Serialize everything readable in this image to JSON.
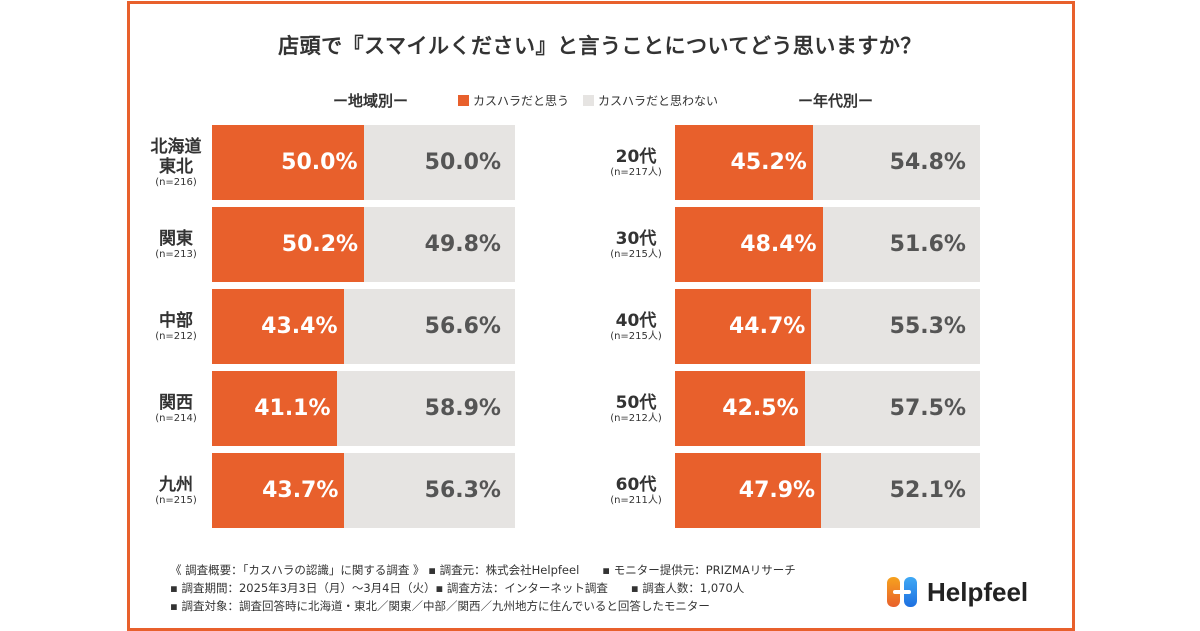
{
  "title": "店頭で『スマイルください』と言うことについてどう思いますか？",
  "colors": {
    "yes": "#e8602c",
    "no": "#e6e4e2",
    "frame": "#e8602c"
  },
  "legend": {
    "yes_label": "カスハラだと思う",
    "no_label": "カスハラだと思わない"
  },
  "chart_data": [
    {
      "type": "bar",
      "stacked": true,
      "orientation": "horizontal",
      "title": "ー地域別ー",
      "categories": [
        "北海道\n東北",
        "関東",
        "中部",
        "関西",
        "九州"
      ],
      "category_lines": [
        [
          "北海道",
          "東北"
        ],
        [
          "関東"
        ],
        [
          "中部"
        ],
        [
          "関西"
        ],
        [
          "九州"
        ]
      ],
      "sample_sizes": [
        "(n=216)",
        "(n=213)",
        "(n=212)",
        "(n=214)",
        "(n=215)"
      ],
      "series": [
        {
          "name": "カスハラだと思う",
          "values": [
            50.0,
            50.2,
            43.4,
            41.1,
            43.7
          ]
        },
        {
          "name": "カスハラだと思わない",
          "values": [
            50.0,
            49.8,
            56.6,
            58.9,
            56.3
          ]
        }
      ],
      "xlim": [
        0,
        100
      ]
    },
    {
      "type": "bar",
      "stacked": true,
      "orientation": "horizontal",
      "title": "ー年代別ー",
      "categories": [
        "20代",
        "30代",
        "40代",
        "50代",
        "60代"
      ],
      "category_lines": [
        [
          "20代"
        ],
        [
          "30代"
        ],
        [
          "40代"
        ],
        [
          "50代"
        ],
        [
          "60代"
        ]
      ],
      "sample_sizes": [
        "(n=217人)",
        "(n=215人)",
        "(n=215人)",
        "(n=212人)",
        "(n=211人)"
      ],
      "series": [
        {
          "name": "カスハラだと思う",
          "values": [
            45.2,
            48.4,
            44.7,
            42.5,
            47.9
          ]
        },
        {
          "name": "カスハラだと思わない",
          "values": [
            54.8,
            51.6,
            55.3,
            57.5,
            52.1
          ]
        }
      ],
      "xlim": [
        0,
        100
      ]
    }
  ],
  "notes": [
    "《 調査概要：「カスハラの認識」に関する調査 》 ▪ 調査元：株式会社Helpfeel　　▪ モニター提供元：PRIZMAリサーチ",
    "▪ 調査期間：2025年3月3日（月）〜3月4日（火）▪ 調査方法：インターネット調査　　▪ 調査人数：1,070人",
    "▪ 調査対象：調査回答時に北海道・東北／関東／中部／関西／九州地方に住んでいると回答したモニター"
  ],
  "logo": {
    "text": "Helpfeel",
    "icon": "helpfeel-logo-icon"
  }
}
